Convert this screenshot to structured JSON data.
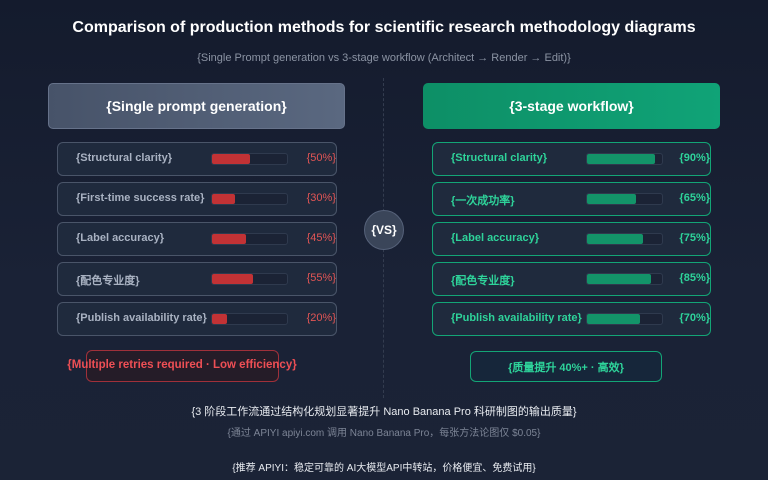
{
  "title": "Comparison of production methods for scientific research methodology diagrams",
  "subtitle": "{Single Prompt generation vs 3-stage workflow (Architect → Render → Edit)}",
  "left": {
    "header": "{Single prompt generation}",
    "color": "#c23235",
    "rows": [
      {
        "label": "{Structural clarity}",
        "value": 50,
        "pct": "{50%}"
      },
      {
        "label": "{First-time success rate}",
        "value": 30,
        "pct": "{30%}"
      },
      {
        "label": "{Label accuracy}",
        "value": 45,
        "pct": "{45%}"
      },
      {
        "label": "{配色专业度}",
        "value": 55,
        "pct": "{55%}"
      },
      {
        "label": "{Publish availability rate}",
        "value": 20,
        "pct": "{20%}"
      }
    ],
    "summary": "{Multiple retries required · Low efficiency}"
  },
  "vs": "{VS}",
  "right": {
    "header": "{3-stage workflow}",
    "color": "#139469",
    "rows": [
      {
        "label": "{Structural clarity}",
        "value": 90,
        "pct": "{90%}"
      },
      {
        "label": "{一次成功率}",
        "value": 65,
        "pct": "{65%}"
      },
      {
        "label": "{Label accuracy}",
        "value": 75,
        "pct": "{75%}"
      },
      {
        "label": "{配色专业度}",
        "value": 85,
        "pct": "{85%}"
      },
      {
        "label": "{Publish availability rate}",
        "value": 70,
        "pct": "{70%}"
      }
    ],
    "summary": "{质量提升 40%+ · 高效}"
  },
  "footer": {
    "line1": "{3 阶段工作流通过结构化规划显著提升 Nano Banana Pro 科研制图的输出质量}",
    "line2": "{通过 APIYI apiyi.com 调用 Nano Banana Pro，每张方法论图仅 $0.05}",
    "line3": "{推荐 APIYI：稳定可靠的 AI大模型API中转站，价格便宜、免费试用}"
  }
}
